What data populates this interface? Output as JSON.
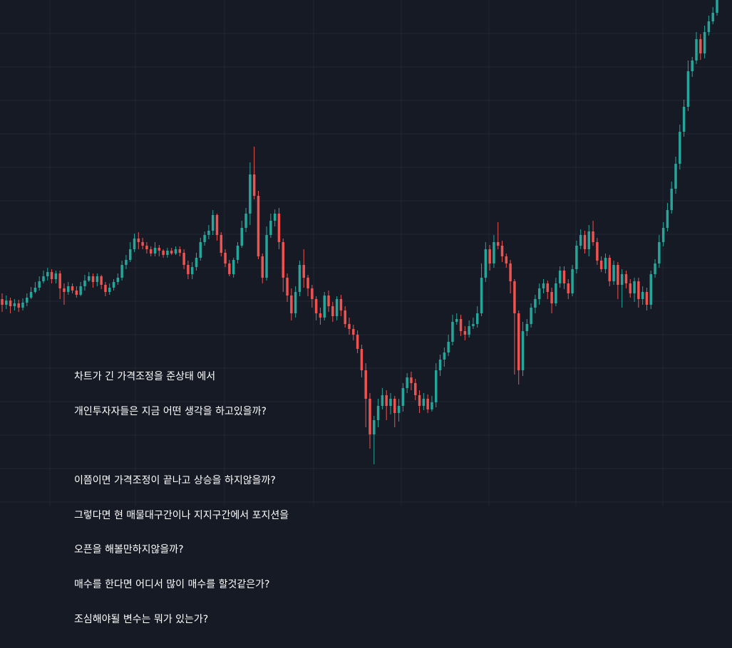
{
  "annotation": {
    "lines": [
      "차트가 긴 가격조정을 준상태 에서",
      "개인투자자들은 지금 어떤 생각을 하고있을까?",
      "",
      "이쯤이면 가격조정이 끝나고 상승을 하지않을까?",
      "그렇다면 현 매물대구간이나 지지구간에서 포지션을",
      "오픈을 해볼만하지않을까?",
      "매수를 한다면 어디서 많이 매수를 할것같은가?",
      "조심해야될 변수는 뭐가 있는가?"
    ]
  },
  "colors": {
    "background": "#161a25",
    "grid": "#232733",
    "up": "#26a69a",
    "down": "#ef5350",
    "text": "#ffffff"
  },
  "chart_data": {
    "type": "candlestick",
    "ylim": [
      0,
      710
    ],
    "grid": true,
    "candles": [
      [
        420,
        428,
        412,
        438
      ],
      [
        428,
        422,
        415,
        434
      ],
      [
        422,
        430,
        418,
        440
      ],
      [
        430,
        426,
        420,
        436
      ],
      [
        426,
        432,
        421,
        438
      ],
      [
        432,
        425,
        419,
        436
      ],
      [
        425,
        418,
        412,
        430
      ],
      [
        418,
        410,
        403,
        420
      ],
      [
        410,
        404,
        396,
        412
      ],
      [
        404,
        395,
        388,
        408
      ],
      [
        395,
        388,
        380,
        398
      ],
      [
        388,
        382,
        376,
        394
      ],
      [
        382,
        392,
        378,
        398
      ],
      [
        392,
        384,
        380,
        398
      ],
      [
        384,
        405,
        380,
        420
      ],
      [
        405,
        410,
        398,
        428
      ],
      [
        410,
        402,
        396,
        414
      ],
      [
        402,
        408,
        398,
        412
      ],
      [
        408,
        414,
        402,
        418
      ],
      [
        414,
        402,
        396,
        416
      ],
      [
        402,
        394,
        386,
        408
      ],
      [
        394,
        388,
        382,
        396
      ],
      [
        388,
        396,
        384,
        404
      ],
      [
        396,
        388,
        384,
        402
      ],
      [
        388,
        400,
        386,
        406
      ],
      [
        400,
        410,
        396,
        416
      ],
      [
        410,
        404,
        398,
        414
      ],
      [
        404,
        396,
        392,
        408
      ],
      [
        396,
        390,
        384,
        400
      ],
      [
        390,
        372,
        366,
        394
      ],
      [
        372,
        365,
        358,
        378
      ],
      [
        365,
        350,
        340,
        368
      ],
      [
        350,
        335,
        328,
        354
      ],
      [
        335,
        340,
        326,
        350
      ],
      [
        340,
        345,
        334,
        350
      ],
      [
        345,
        350,
        340,
        356
      ],
      [
        350,
        356,
        346,
        360
      ],
      [
        356,
        348,
        340,
        360
      ],
      [
        348,
        352,
        344,
        360
      ],
      [
        352,
        358,
        350,
        362
      ],
      [
        358,
        352,
        348,
        362
      ],
      [
        352,
        356,
        348,
        358
      ],
      [
        356,
        350,
        346,
        358
      ],
      [
        350,
        355,
        346,
        360
      ],
      [
        355,
        372,
        350,
        378
      ],
      [
        372,
        385,
        366,
        392
      ],
      [
        385,
        375,
        368,
        392
      ],
      [
        375,
        362,
        355,
        380
      ],
      [
        362,
        340,
        334,
        366
      ],
      [
        340,
        330,
        325,
        345
      ],
      [
        330,
        324,
        316,
        336
      ],
      [
        324,
        302,
        295,
        330
      ],
      [
        302,
        330,
        300,
        338
      ],
      [
        330,
        355,
        326,
        360
      ],
      [
        355,
        370,
        350,
        375
      ],
      [
        370,
        385,
        365,
        388
      ],
      [
        385,
        365,
        362,
        390
      ],
      [
        365,
        345,
        340,
        370
      ],
      [
        345,
        320,
        310,
        348
      ],
      [
        320,
        300,
        292,
        326
      ],
      [
        300,
        245,
        228,
        316
      ],
      [
        245,
        275,
        206,
        280
      ],
      [
        275,
        360,
        268,
        364
      ],
      [
        360,
        390,
        356,
        398
      ],
      [
        390,
        330,
        318,
        394
      ],
      [
        330,
        310,
        300,
        334
      ],
      [
        310,
        300,
        294,
        318
      ],
      [
        300,
        340,
        292,
        350
      ],
      [
        340,
        390,
        335,
        410
      ],
      [
        390,
        415,
        384,
        424
      ],
      [
        415,
        440,
        405,
        450
      ],
      [
        440,
        410,
        402,
        446
      ],
      [
        410,
        372,
        366,
        416
      ],
      [
        372,
        390,
        350,
        404
      ],
      [
        390,
        405,
        386,
        416
      ],
      [
        405,
        420,
        400,
        432
      ],
      [
        420,
        440,
        416,
        450
      ],
      [
        440,
        446,
        432,
        456
      ],
      [
        446,
        415,
        410,
        450
      ],
      [
        415,
        430,
        408,
        438
      ],
      [
        430,
        444,
        424,
        452
      ],
      [
        444,
        420,
        416,
        450
      ],
      [
        420,
        436,
        414,
        444
      ],
      [
        436,
        455,
        430,
        460
      ],
      [
        455,
        462,
        446,
        470
      ],
      [
        462,
        470,
        456,
        478
      ],
      [
        470,
        490,
        464,
        496
      ],
      [
        490,
        520,
        484,
        530
      ],
      [
        520,
        560,
        510,
        600
      ],
      [
        560,
        610,
        552,
        630
      ],
      [
        610,
        590,
        584,
        652
      ],
      [
        590,
        570,
        560,
        600
      ],
      [
        570,
        555,
        545,
        575
      ],
      [
        555,
        570,
        548,
        590
      ],
      [
        570,
        560,
        552,
        582
      ],
      [
        560,
        580,
        556,
        600
      ],
      [
        580,
        570,
        560,
        592
      ],
      [
        570,
        545,
        538,
        578
      ],
      [
        545,
        530,
        524,
        552
      ],
      [
        530,
        538,
        522,
        548
      ],
      [
        538,
        555,
        532,
        562
      ],
      [
        555,
        570,
        548,
        580
      ],
      [
        570,
        560,
        552,
        576
      ],
      [
        560,
        575,
        554,
        580
      ],
      [
        575,
        565,
        556,
        578
      ],
      [
        565,
        520,
        510,
        572
      ],
      [
        520,
        505,
        498,
        528
      ],
      [
        505,
        495,
        488,
        515
      ],
      [
        495,
        480,
        470,
        500
      ],
      [
        480,
        452,
        442,
        485
      ],
      [
        452,
        448,
        440,
        456
      ],
      [
        448,
        465,
        442,
        472
      ],
      [
        465,
        470,
        458,
        478
      ],
      [
        470,
        458,
        450,
        474
      ],
      [
        458,
        455,
        446,
        462
      ],
      [
        455,
        440,
        430,
        460
      ],
      [
        440,
        390,
        370,
        444
      ],
      [
        390,
        350,
        340,
        396
      ],
      [
        350,
        370,
        344,
        380
      ],
      [
        370,
        340,
        330,
        376
      ],
      [
        340,
        345,
        312,
        350
      ],
      [
        345,
        360,
        338,
        368
      ],
      [
        360,
        370,
        356,
        376
      ],
      [
        370,
        395,
        365,
        412
      ],
      [
        395,
        440,
        392,
        526
      ],
      [
        440,
        520,
        436,
        540
      ],
      [
        520,
        465,
        452,
        528
      ],
      [
        465,
        455,
        448,
        472
      ],
      [
        455,
        432,
        426,
        460
      ],
      [
        432,
        420,
        414,
        440
      ],
      [
        420,
        405,
        398,
        428
      ],
      [
        405,
        398,
        392,
        412
      ],
      [
        398,
        410,
        394,
        420
      ],
      [
        410,
        426,
        404,
        440
      ],
      [
        426,
        398,
        390,
        430
      ],
      [
        398,
        380,
        374,
        404
      ],
      [
        380,
        398,
        374,
        406
      ],
      [
        398,
        412,
        392,
        420
      ],
      [
        412,
        378,
        372,
        416
      ],
      [
        378,
        345,
        338,
        384
      ],
      [
        345,
        330,
        322,
        350
      ],
      [
        330,
        350,
        324,
        356
      ],
      [
        350,
        325,
        316,
        360
      ],
      [
        325,
        340,
        310,
        345
      ],
      [
        340,
        366,
        334,
        372
      ],
      [
        366,
        378,
        360,
        382
      ],
      [
        378,
        362,
        356,
        384
      ],
      [
        362,
        395,
        358,
        402
      ],
      [
        395,
        372,
        366,
        400
      ],
      [
        372,
        400,
        368,
        420
      ],
      [
        400,
        385,
        378,
        432
      ],
      [
        385,
        398,
        380,
        405
      ],
      [
        398,
        412,
        392,
        418
      ],
      [
        412,
        395,
        390,
        424
      ],
      [
        395,
        420,
        390,
        432
      ],
      [
        420,
        410,
        402,
        428
      ],
      [
        410,
        428,
        404,
        436
      ],
      [
        428,
        385,
        380,
        434
      ],
      [
        385,
        370,
        364,
        390
      ],
      [
        370,
        340,
        330,
        376
      ],
      [
        340,
        320,
        312,
        346
      ],
      [
        320,
        295,
        285,
        325
      ],
      [
        295,
        265,
        255,
        300
      ],
      [
        265,
        230,
        220,
        272
      ],
      [
        230,
        185,
        175,
        238
      ],
      [
        185,
        150,
        140,
        192
      ],
      [
        150,
        100,
        85,
        156
      ],
      [
        100,
        85,
        80,
        108
      ],
      [
        85,
        55,
        45,
        90
      ],
      [
        55,
        75,
        48,
        84
      ],
      [
        75,
        45,
        36,
        82
      ],
      [
        45,
        30,
        22,
        50
      ],
      [
        30,
        18,
        10,
        34
      ],
      [
        18,
        0,
        0,
        22
      ]
    ]
  }
}
